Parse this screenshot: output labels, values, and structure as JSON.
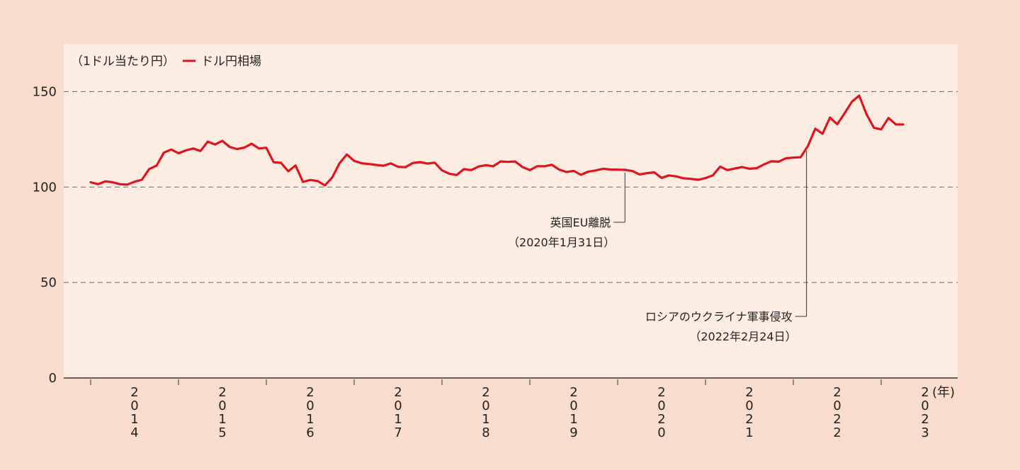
{
  "colors": {
    "page_bg": "#f9dccb",
    "plot_bg": "#fdece2",
    "line": "#e0141e",
    "grid": "#666666",
    "axis": "#333333"
  },
  "chart_data": {
    "type": "line",
    "unit_label": "（1ドル当たり円）",
    "legend": [
      {
        "label": "ドル円相場",
        "color": "#e0141e"
      }
    ],
    "legend_position": "top-left",
    "x_unit_label": "(年)",
    "x_year_labels": [
      "2014",
      "2015",
      "2016",
      "2017",
      "2018",
      "2019",
      "2020",
      "2021",
      "2022",
      "2023"
    ],
    "ylim": [
      0,
      175
    ],
    "yticks": [
      0,
      50,
      100,
      150
    ],
    "grid": "horizontal-dashed",
    "series": [
      {
        "name": "ドル円相場",
        "color": "#e0141e",
        "x": [
          2014.0,
          2014.083,
          2014.167,
          2014.25,
          2014.333,
          2014.417,
          2014.5,
          2014.583,
          2014.667,
          2014.75,
          2014.833,
          2014.917,
          2015.0,
          2015.083,
          2015.167,
          2015.25,
          2015.333,
          2015.417,
          2015.5,
          2015.583,
          2015.667,
          2015.75,
          2015.833,
          2015.917,
          2016.0,
          2016.083,
          2016.167,
          2016.25,
          2016.333,
          2016.417,
          2016.5,
          2016.583,
          2016.667,
          2016.75,
          2016.833,
          2016.917,
          2017.0,
          2017.083,
          2017.167,
          2017.25,
          2017.333,
          2017.417,
          2017.5,
          2017.583,
          2017.667,
          2017.75,
          2017.833,
          2017.917,
          2018.0,
          2018.083,
          2018.167,
          2018.25,
          2018.333,
          2018.417,
          2018.5,
          2018.583,
          2018.667,
          2018.75,
          2018.833,
          2018.917,
          2019.0,
          2019.083,
          2019.167,
          2019.25,
          2019.333,
          2019.417,
          2019.5,
          2019.583,
          2019.667,
          2019.75,
          2019.833,
          2019.917,
          2020.0,
          2020.083,
          2020.167,
          2020.25,
          2020.333,
          2020.417,
          2020.5,
          2020.583,
          2020.667,
          2020.75,
          2020.833,
          2020.917,
          2021.0,
          2021.083,
          2021.167,
          2021.25,
          2021.333,
          2021.417,
          2021.5,
          2021.583,
          2021.667,
          2021.75,
          2021.833,
          2021.917,
          2022.0,
          2022.083,
          2022.167,
          2022.25,
          2022.333,
          2022.417,
          2022.5,
          2022.583,
          2022.667,
          2022.75,
          2022.833,
          2022.917,
          2023.0,
          2023.083,
          2023.167,
          2023.25
        ],
        "values": [
          102.5,
          101.5,
          103.0,
          102.5,
          101.5,
          101.3,
          102.8,
          103.8,
          109.5,
          111.2,
          118.0,
          119.7,
          117.7,
          119.2,
          120.2,
          118.9,
          123.8,
          122.3,
          124.2,
          121.0,
          119.9,
          120.7,
          122.7,
          120.2,
          120.6,
          113.0,
          112.7,
          108.3,
          111.3,
          102.7,
          103.7,
          103.2,
          100.9,
          105.0,
          112.5,
          117.1,
          113.7,
          112.5,
          112.1,
          111.6,
          111.2,
          112.4,
          110.6,
          110.4,
          112.6,
          113.1,
          112.3,
          112.8,
          108.8,
          107.0,
          106.3,
          109.4,
          108.9,
          110.8,
          111.5,
          110.9,
          113.4,
          113.2,
          113.4,
          110.5,
          108.9,
          110.9,
          110.9,
          111.7,
          109.2,
          107.9,
          108.5,
          106.4,
          108.1,
          108.7,
          109.6,
          109.2,
          109.1,
          109.0,
          108.4,
          106.6,
          107.3,
          107.7,
          104.8,
          106.1,
          105.6,
          104.6,
          104.3,
          103.8,
          104.7,
          106.1,
          110.7,
          108.9,
          109.7,
          110.5,
          109.6,
          109.9,
          111.9,
          113.5,
          113.3,
          115.1,
          115.4,
          115.6,
          121.6,
          130.6,
          127.9,
          136.4,
          132.9,
          138.6,
          144.7,
          147.9,
          138.2,
          131.1,
          130.2,
          136.2,
          132.8,
          132.8
        ]
      }
    ],
    "annotations": [
      {
        "label": "英国EU離脱",
        "date_label": "（2020年1月31日）",
        "x": 2020.083
      },
      {
        "label": "ロシアのウクライナ軍事侵攻",
        "date_label": "（2022年2月24日）",
        "x": 2022.15
      }
    ]
  }
}
